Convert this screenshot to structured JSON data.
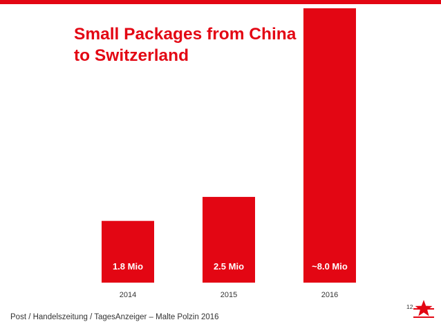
{
  "slide": {
    "title": "Small Packages from China\nto Switzerland",
    "source": "Post / Handelszeitung / TagesAnzeiger – Malte Polzin 2016",
    "page_number": "12"
  },
  "colors": {
    "accent": "#e30613",
    "title_inside_bar": "#ffffff",
    "axis_text": "#333333"
  },
  "icons": {
    "logo": "star-icon"
  },
  "chart_data": {
    "type": "bar",
    "categories": [
      "2014",
      "2015",
      "2016"
    ],
    "values": [
      1.8,
      2.5,
      8.0
    ],
    "data_labels": [
      "1.8 Mio",
      "2.5 Mio",
      "~8.0 Mio"
    ],
    "xlabel": "",
    "ylabel": "",
    "ylim": [
      0,
      8.0
    ],
    "grid": false,
    "legend": "none"
  }
}
